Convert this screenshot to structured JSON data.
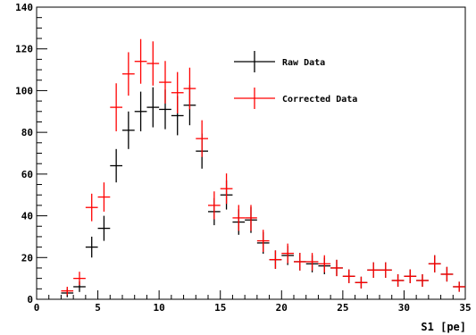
{
  "chart_data": {
    "type": "scatter",
    "title": "",
    "xlabel": "S1 [pe]",
    "ylabel": "",
    "xlim": [
      0,
      35
    ],
    "ylim": [
      0,
      140
    ],
    "x_ticks": [
      0,
      5,
      10,
      15,
      20,
      25,
      30,
      35
    ],
    "y_ticks": [
      0,
      20,
      40,
      60,
      80,
      100,
      120,
      140
    ],
    "x_minor_step": 1,
    "y_minor_step": 5,
    "grid": false,
    "legend_position": "top-right",
    "bin_width": 1,
    "series": [
      {
        "name": "Raw Data",
        "color": "#000000",
        "x": [
          2.5,
          3.5,
          4.5,
          5.5,
          6.5,
          7.5,
          8.5,
          9.5,
          10.5,
          11.5,
          12.5,
          13.5,
          14.5,
          15.5,
          16.5,
          17.5,
          18.5,
          19.5,
          20.5,
          21.5,
          22.5,
          23.5,
          24.5,
          25.5,
          26.5,
          27.5,
          28.5,
          29.5,
          30.5,
          31.5,
          32.5,
          33.5,
          34.5
        ],
        "y": [
          3,
          6,
          25,
          34,
          64,
          81,
          90,
          92,
          91,
          88,
          93,
          71,
          42,
          50,
          37,
          38,
          27,
          19,
          21,
          18,
          17,
          16,
          15,
          11,
          8,
          14,
          14,
          9,
          11,
          9,
          17,
          12,
          6
        ],
        "yerr": [
          2,
          2.5,
          5,
          6,
          8,
          9,
          9.5,
          9.6,
          9.5,
          9.4,
          9.6,
          8.4,
          6.5,
          7,
          6.1,
          6.2,
          5.2,
          4.4,
          4.6,
          4.2,
          4.1,
          4,
          3.9,
          3.3,
          2.8,
          3.7,
          3.7,
          3,
          3.3,
          3,
          4.1,
          3.5,
          2.4
        ]
      },
      {
        "name": "Corrected Data",
        "color": "#ff0000",
        "x": [
          2.5,
          3.5,
          4.5,
          5.5,
          6.5,
          7.5,
          8.5,
          9.5,
          10.5,
          11.5,
          12.5,
          13.5,
          14.5,
          15.5,
          16.5,
          17.5,
          18.5,
          19.5,
          20.5,
          21.5,
          22.5,
          23.5,
          24.5,
          25.5,
          26.5,
          27.5,
          28.5,
          29.5,
          30.5,
          31.5,
          32.5,
          33.5,
          34.5
        ],
        "y": [
          4,
          10,
          44,
          49,
          92,
          108,
          114,
          113,
          104,
          99,
          101,
          77,
          45,
          53,
          39,
          39,
          28,
          19,
          22,
          18,
          18,
          17,
          15,
          11,
          8,
          14,
          14,
          9,
          11,
          9,
          17,
          12,
          6
        ],
        "yerr": [
          2,
          3.2,
          6.6,
          7,
          11.5,
          10.4,
          10.7,
          10.6,
          10.2,
          9.9,
          10,
          8.8,
          6.7,
          7.3,
          6.2,
          6.2,
          5.3,
          4.4,
          4.7,
          4.2,
          4.2,
          4.1,
          3.9,
          3.3,
          2.8,
          3.7,
          3.7,
          3,
          3.3,
          3,
          4.1,
          3.5,
          2.4
        ]
      }
    ]
  }
}
